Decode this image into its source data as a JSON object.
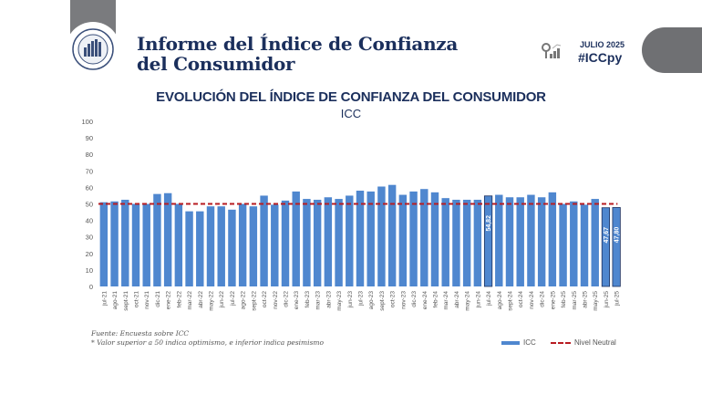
{
  "header": {
    "title_line1": "Informe del Índice de Confianza",
    "title_line2": "del Consumidor",
    "period": "JULIO 2025",
    "hashtag": "#ICCpy",
    "logo_icon": "central-bank-seal-icon",
    "stats_icon": "bar-chart-icon"
  },
  "footer": {
    "source": "Fuente: Encuesta sobre ICC",
    "note": "* Valor superior a 50 indica optimismo, e inferior indica pesimismo"
  },
  "colors": {
    "bar": "#4f87cf",
    "neutral_line": "#b81c22",
    "title": "#1b2f5c"
  },
  "chart_data": {
    "type": "bar",
    "title": "EVOLUCIÓN DEL ÍNDICE DE CONFIANZA DEL CONSUMIDOR",
    "subtitle": "ICC",
    "xlabel": "",
    "ylabel": "",
    "ylim": [
      0,
      100
    ],
    "yticks": [
      0,
      10,
      20,
      30,
      40,
      50,
      60,
      70,
      80,
      90,
      100
    ],
    "grid": false,
    "legend_position": "bottom-right",
    "categories": [
      "jul-21",
      "ago-21",
      "sept-21",
      "oct-21",
      "nov-21",
      "dic-21",
      "ene-22",
      "feb-22",
      "mar-22",
      "abr-22",
      "may-22",
      "jun-22",
      "jul-22",
      "ago-22",
      "sept-22",
      "oct-22",
      "nov-22",
      "dic-22",
      "ene-23",
      "feb-23",
      "mar-23",
      "abr-23",
      "may-23",
      "jun-23",
      "jul-23",
      "ago-23",
      "sept-23",
      "oct-23",
      "nov-23",
      "dic-23",
      "ene-24",
      "feb-24",
      "mar-24",
      "abr-24",
      "may-24",
      "jun-24",
      "jul-24",
      "ago-24",
      "sept-24",
      "oct-24",
      "nov-24",
      "dic-24",
      "ene-25",
      "feb-25",
      "mar-25",
      "abr-25",
      "may-25",
      "jun-25",
      "jul-25"
    ],
    "series": [
      {
        "name": "ICC",
        "values": [
          51.0,
          51.5,
          52.5,
          50.0,
          50.0,
          56.0,
          56.5,
          50.0,
          45.5,
          45.5,
          48.5,
          48.5,
          46.5,
          50.0,
          48.5,
          55.0,
          49.5,
          52.0,
          57.5,
          53.0,
          52.5,
          54.0,
          53.0,
          55.0,
          58.0,
          57.5,
          60.5,
          61.5,
          55.5,
          57.5,
          59.0,
          57.0,
          53.5,
          52.5,
          52.5,
          52.5,
          54.82,
          55.5,
          54.0,
          54.0,
          55.5,
          54.0,
          57.0,
          50.0,
          51.5,
          49.5,
          53.0,
          47.67,
          47.8
        ]
      },
      {
        "name": "Nivel Neutral",
        "value": 50
      }
    ],
    "data_labels": [
      {
        "category": "jul-24",
        "text": "54,82"
      },
      {
        "category": "jun-25",
        "text": "47,67"
      },
      {
        "category": "jul-25",
        "text": "47,80"
      }
    ],
    "legend": [
      "ICC",
      "Nivel Neutral"
    ]
  }
}
